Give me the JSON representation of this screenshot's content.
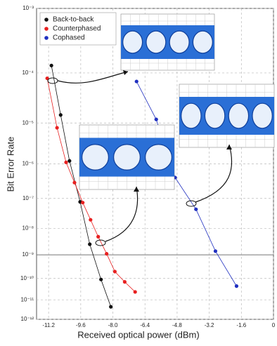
{
  "chart_data": {
    "type": "scatter",
    "xlabel": "Received optical power (dBm)",
    "ylabel": "Bit Error Rate",
    "yscale": "double-log",
    "xlim": [
      -11.8,
      0
    ],
    "xticks": [
      -11.2,
      -9.6,
      {
        "value": -8,
        "label": "-8.0"
      },
      -6.4,
      -4.8,
      -3.2,
      -1.6,
      0
    ],
    "ylim": [
      1e-12,
      0.001
    ],
    "yticks": [
      {
        "value": 0.001,
        "label": "10⁻³"
      },
      {
        "value": 0.0001,
        "label": "10⁻⁴"
      },
      {
        "value": 1e-05,
        "label": "10⁻⁵"
      },
      {
        "value": 1e-06,
        "label": "10⁻⁶"
      },
      {
        "value": 1e-07,
        "label": "10⁻⁷"
      },
      {
        "value": 1e-08,
        "label": "10⁻⁸"
      },
      {
        "value": 1e-09,
        "label": "10⁻⁹"
      },
      {
        "value": 1e-10,
        "label": "10⁻¹⁰"
      },
      {
        "value": 1e-11,
        "label": "10⁻¹¹"
      },
      {
        "value": 1e-12,
        "label": "10⁻¹²"
      }
    ],
    "grid": true,
    "reference_line": 1e-09,
    "legend": "upper-left",
    "series": [
      {
        "name": "Back-to-back",
        "color": "#111111",
        "x": [
          -11.06,
          -10.6,
          -10.16,
          -9.63,
          -9.15,
          -8.59,
          -8.1
        ],
        "values": [
          0.000135,
          1.5e-05,
          1.2e-06,
          7.8e-08,
          2.6e-09,
          9e-11,
          4.5e-12
        ]
      },
      {
        "name": "Counterphased",
        "color": "#e82020",
        "x": [
          -11.27,
          -10.78,
          -10.33,
          -9.91,
          -9.5,
          -9.11,
          -8.73,
          -8.31,
          -7.9,
          -7.41,
          -6.89
        ],
        "values": [
          8e-05,
          7.8e-06,
          1.1e-06,
          3e-07,
          7.4e-08,
          2e-08,
          5e-09,
          1.1e-09,
          2e-10,
          7e-11,
          2.4e-11
        ]
      },
      {
        "name": "Cophased",
        "color": "#2030c0",
        "x": [
          -6.82,
          -5.84,
          -4.9,
          -3.86,
          -2.89,
          -1.84
        ],
        "values": [
          7e-05,
          1.2e-05,
          4.2e-07,
          4.5e-08,
          1.4e-09,
          4.5e-11
        ]
      }
    ]
  }
}
